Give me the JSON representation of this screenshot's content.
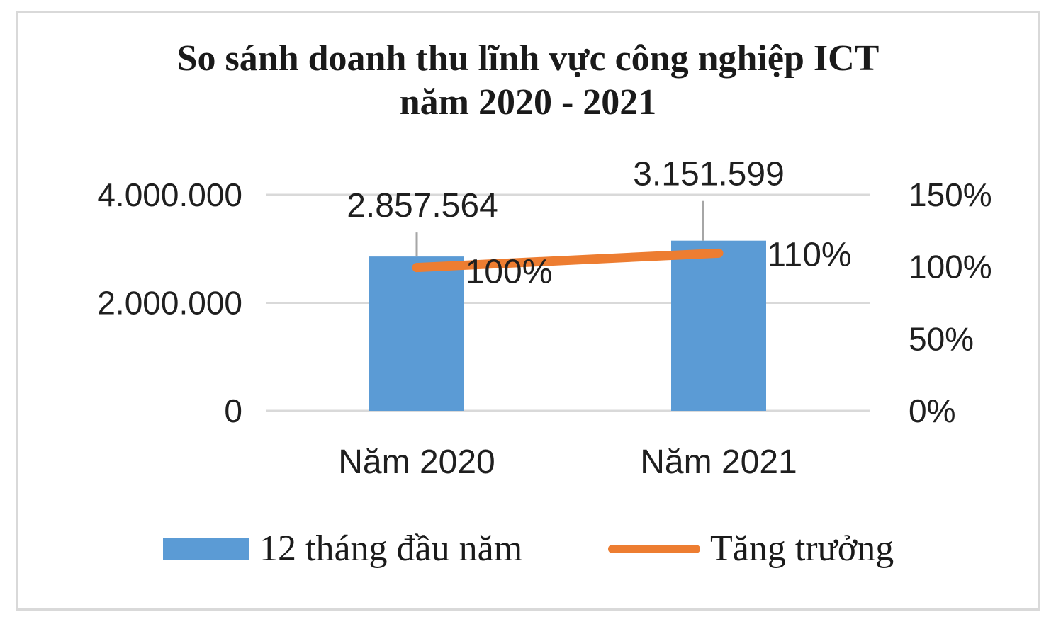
{
  "chart_data": {
    "type": "bar",
    "title_line1": "So sánh doanh thu lĩnh vực công nghiệp ICT",
    "title_line2": "năm 2020 - 2021",
    "categories": [
      "Năm 2020",
      "Năm 2021"
    ],
    "series": [
      {
        "name": "12 tháng đầu năm",
        "type": "bar",
        "axis": "left",
        "values": [
          2857564,
          3151599
        ],
        "labels": [
          "2.857.564",
          "3.151.599"
        ],
        "color": "#5b9bd5"
      },
      {
        "name": "Tăng trưởng",
        "type": "line",
        "axis": "right",
        "values": [
          100,
          110
        ],
        "labels": [
          "100%",
          "110%"
        ],
        "color": "#ed7d31"
      }
    ],
    "y_left": {
      "min": 0,
      "max": 4000000,
      "ticks": [
        0,
        2000000,
        4000000
      ],
      "tick_labels": [
        "0",
        "2.000.000",
        "4.000.000"
      ]
    },
    "y_right": {
      "min": 0,
      "max": 150,
      "ticks": [
        0,
        50,
        100,
        150
      ],
      "tick_labels": [
        "0%",
        "50%",
        "100%",
        "150%"
      ]
    },
    "grid": true,
    "legend_position": "bottom"
  }
}
